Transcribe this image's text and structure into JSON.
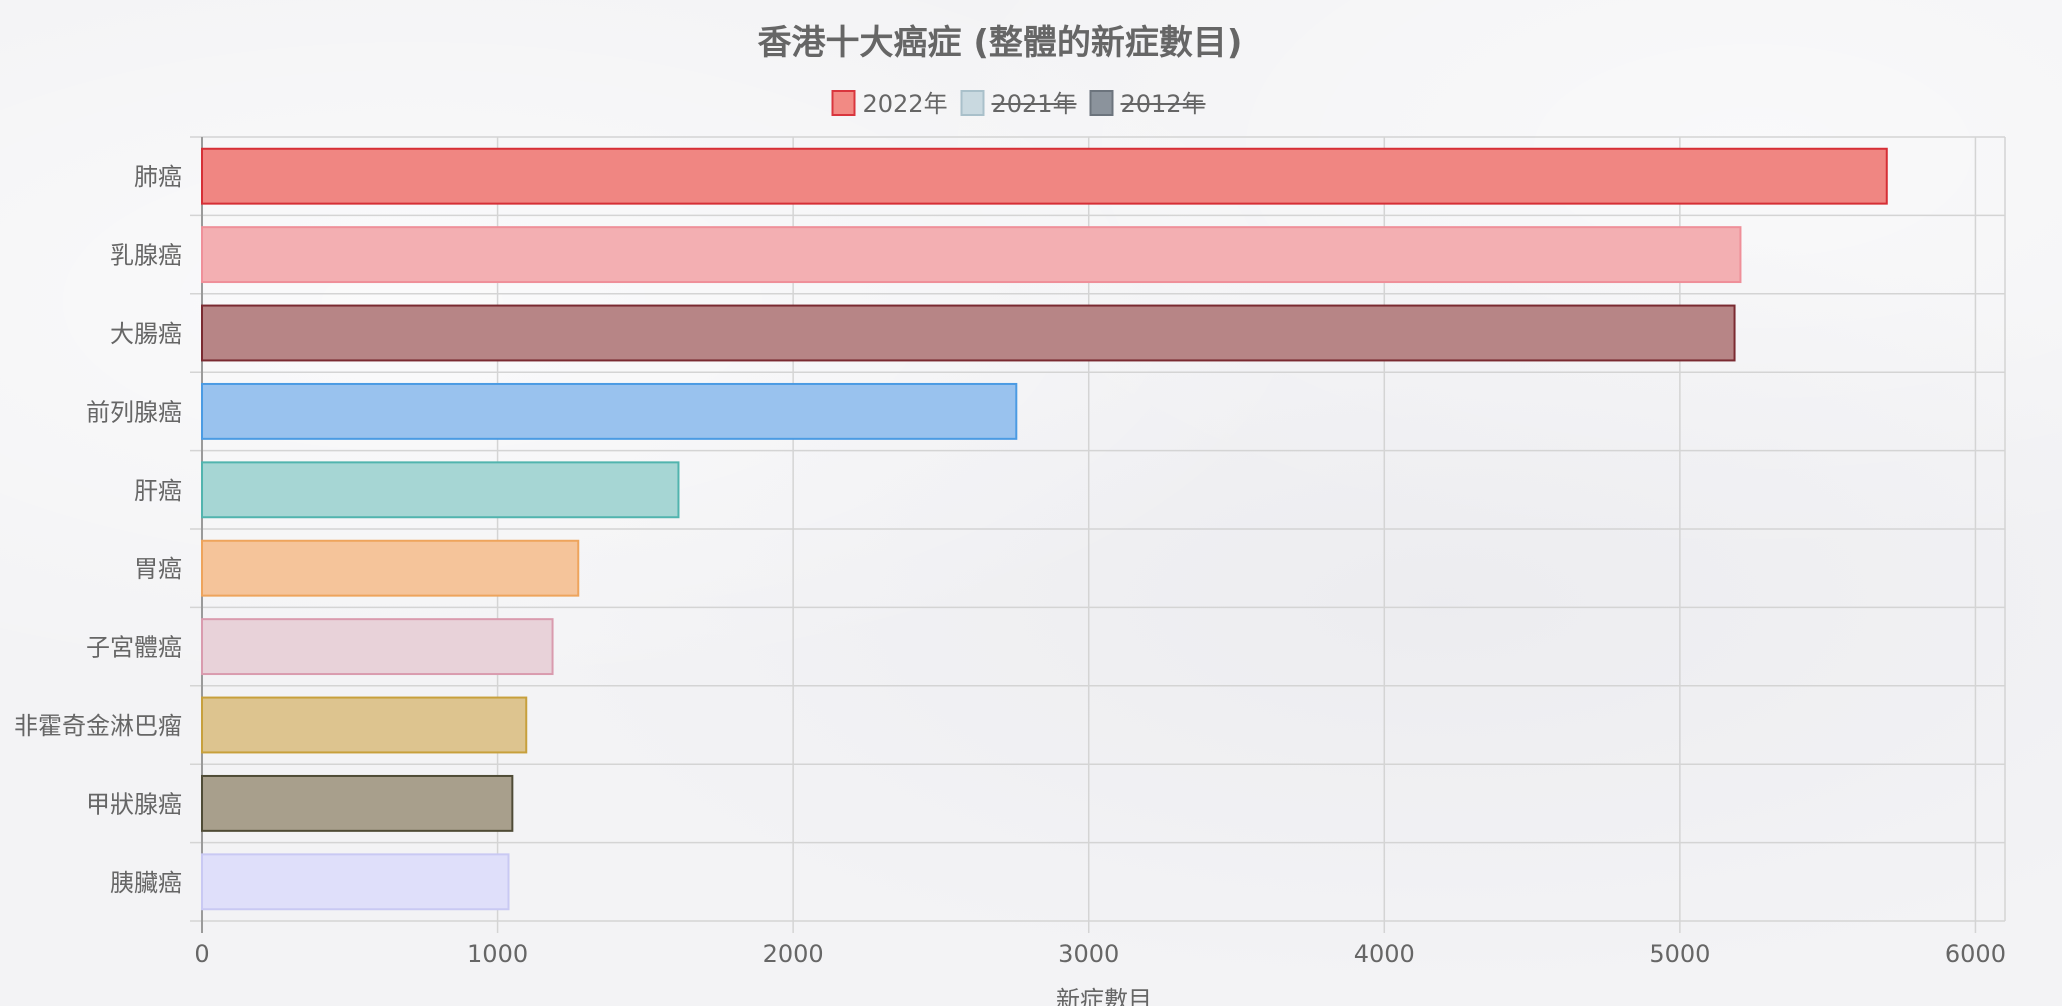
{
  "chart_data": {
    "type": "bar",
    "orientation": "horizontal",
    "title": "香港十大癌症 (整體的新症數目)",
    "xlabel": "新症數目",
    "ylabel": "",
    "xlim": [
      0,
      6100
    ],
    "xticks": [
      0,
      1000,
      2000,
      3000,
      4000,
      5000,
      6000
    ],
    "grid": true,
    "legend_position": "top",
    "legend": [
      {
        "name": "2022年",
        "color": "#f28a84",
        "border": "#d9363e",
        "hidden": false
      },
      {
        "name": "2021年",
        "color": "#c9d9e0",
        "border": "#a9c0ca",
        "hidden": true
      },
      {
        "name": "2012年",
        "color": "#8b939c",
        "border": "#6c747d",
        "hidden": true
      }
    ],
    "categories": [
      "肺癌",
      "乳腺癌",
      "大腸癌",
      "前列腺癌",
      "肝癌",
      "胃癌",
      "子宮體癌",
      "非霍奇金淋巴瘤",
      "甲狀腺癌",
      "胰臟癌"
    ],
    "series": [
      {
        "name": "2022年",
        "values": [
          5700,
          5205,
          5185,
          2755,
          1612,
          1273,
          1186,
          1097,
          1050,
          1037
        ],
        "colors": [
          "#f08682",
          "#f3afb2",
          "#b78586",
          "#99c2ee",
          "#a6d6d4",
          "#f5c49a",
          "#e8d2d9",
          "#ddc48f",
          "#a89f8c",
          "#dfdffa"
        ],
        "borders": [
          "#d62f36",
          "#ef8f99",
          "#7a2a31",
          "#4b9be3",
          "#51b4ae",
          "#eea45c",
          "#d99bae",
          "#c7a03c",
          "#4f4b36",
          "#c9c9f3"
        ]
      }
    ]
  }
}
